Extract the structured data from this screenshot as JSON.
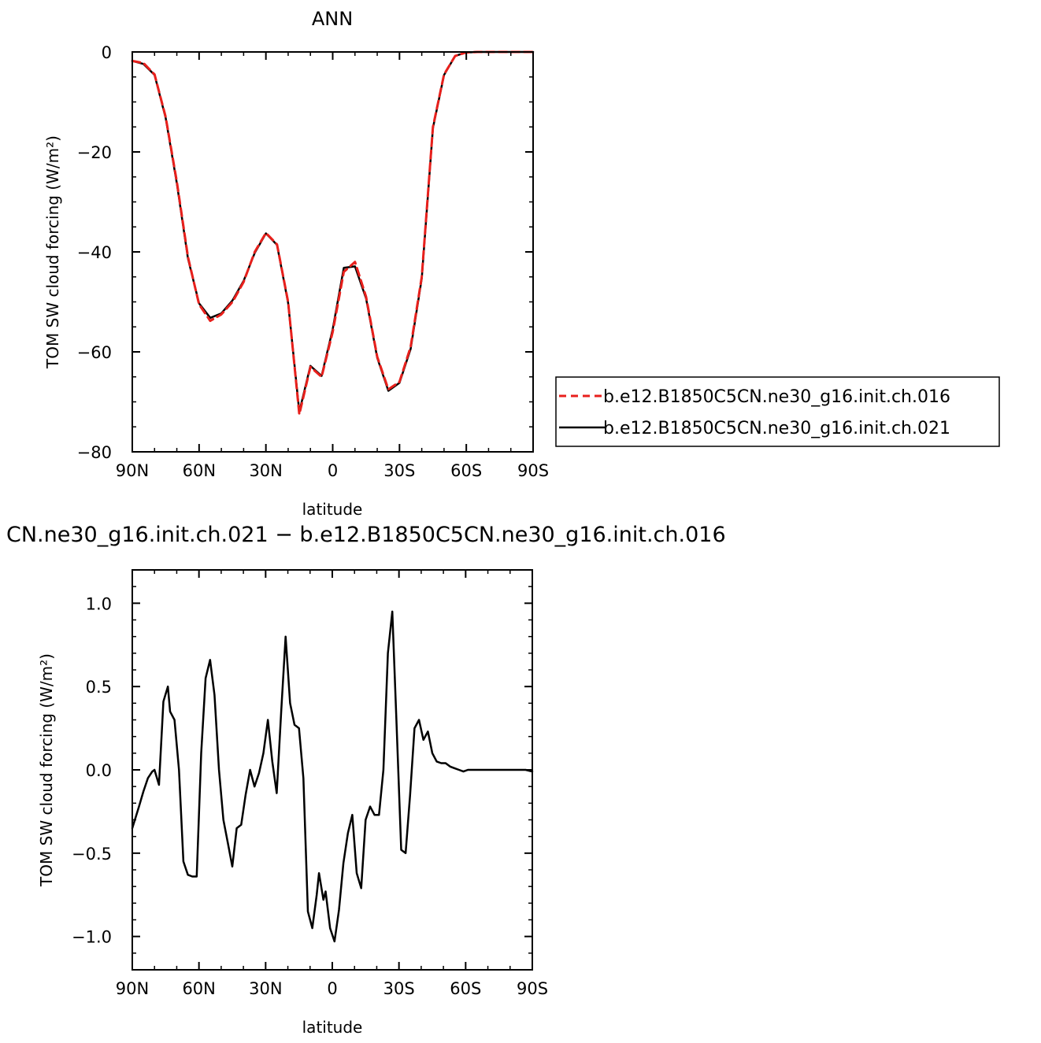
{
  "chart_data": [
    {
      "type": "line",
      "title": "ANN",
      "xlabel": "latitude",
      "ylabel": "TOM SW cloud forcing (W/m²)",
      "xlim": [
        90,
        -90
      ],
      "ylim": [
        -80,
        0
      ],
      "x_ticks": [
        {
          "value": 90,
          "label": "90N"
        },
        {
          "value": 60,
          "label": "60N"
        },
        {
          "value": 30,
          "label": "30N"
        },
        {
          "value": 0,
          "label": "0"
        },
        {
          "value": -30,
          "label": "30S"
        },
        {
          "value": -60,
          "label": "60S"
        },
        {
          "value": -90,
          "label": "90S"
        }
      ],
      "y_ticks": [
        {
          "value": 0,
          "label": "0"
        },
        {
          "value": -20,
          "label": "−20"
        },
        {
          "value": -40,
          "label": "−40"
        },
        {
          "value": -60,
          "label": "−60"
        },
        {
          "value": -80,
          "label": "−80"
        }
      ],
      "x": [
        90,
        85,
        80,
        75,
        70,
        65,
        60,
        55,
        50,
        45,
        40,
        35,
        30,
        25,
        20,
        15,
        10,
        5,
        0,
        -5,
        -10,
        -15,
        -20,
        -25,
        -30,
        -35,
        -40,
        -45,
        -50,
        -55,
        -60,
        -65,
        -70,
        -75,
        -80,
        -85,
        -90
      ],
      "series": [
        {
          "name": "b.e12.B1850C5CN.ne30_g16.init.ch.016",
          "color": "#e8201c",
          "dash": "dashed",
          "values": [
            -1.8,
            -2.2,
            -4.5,
            -13,
            -26,
            -41,
            -50.5,
            -53.8,
            -52.5,
            -50,
            -46,
            -40,
            -36.2,
            -38.5,
            -50,
            -72.5,
            -63,
            -65,
            -56,
            -44,
            -42,
            -49,
            -61,
            -67.5,
            -66,
            -59,
            -45,
            -15,
            -4.5,
            -0.8,
            -0.1,
            0,
            0,
            0,
            0,
            0,
            0
          ]
        },
        {
          "name": "b.e12.B1850C5CN.ne30_g16.init.ch.021",
          "color": "#000000",
          "dash": "solid",
          "values": [
            -1.8,
            -2.4,
            -4.6,
            -13.2,
            -26.3,
            -41.3,
            -50.3,
            -53.2,
            -52.3,
            -49.7,
            -45.8,
            -40.2,
            -36.3,
            -38.6,
            -50.2,
            -72.0,
            -62.8,
            -64.8,
            -55.5,
            -43.2,
            -42.9,
            -49.3,
            -61.2,
            -67.8,
            -66.2,
            -59.4,
            -45.3,
            -15.2,
            -4.6,
            -0.8,
            -0.1,
            0,
            0,
            0,
            0,
            0,
            0
          ]
        }
      ]
    },
    {
      "type": "line",
      "title": "CN.ne30_g16.init.ch.021 − b.e12.B1850C5CN.ne30_g16.init.ch.016",
      "xlabel": "latitude",
      "ylabel": "TOM SW cloud forcing (W/m²)",
      "xlim": [
        90,
        -90
      ],
      "ylim": [
        -1.2,
        1.2
      ],
      "x_ticks": [
        {
          "value": 90,
          "label": "90N"
        },
        {
          "value": 60,
          "label": "60N"
        },
        {
          "value": 30,
          "label": "30N"
        },
        {
          "value": 0,
          "label": "0"
        },
        {
          "value": -30,
          "label": "30S"
        },
        {
          "value": -60,
          "label": "60S"
        },
        {
          "value": -90,
          "label": "90S"
        }
      ],
      "y_ticks": [
        {
          "value": 1.0,
          "label": "1.0"
        },
        {
          "value": 0.5,
          "label": "0.5"
        },
        {
          "value": 0.0,
          "label": "0.0"
        },
        {
          "value": -0.5,
          "label": "−0.5"
        },
        {
          "value": -1.0,
          "label": "−1.0"
        }
      ],
      "x": [
        90,
        87,
        85,
        83,
        81,
        80,
        78,
        76,
        74,
        73,
        71,
        69,
        67,
        65,
        63,
        61,
        59,
        57,
        55,
        53,
        51,
        49,
        47,
        45,
        43,
        41,
        39,
        37,
        35,
        33,
        31,
        29,
        27,
        25,
        23,
        21,
        19,
        17,
        15,
        13,
        11,
        9,
        7,
        6,
        4,
        3,
        1,
        -1,
        -3,
        -5,
        -7,
        -9,
        -11,
        -13,
        -15,
        -17,
        -19,
        -21,
        -23,
        -25,
        -27,
        -29,
        -31,
        -33,
        -35,
        -37,
        -39,
        -41,
        -43,
        -45,
        -47,
        -49,
        -51,
        -53,
        -55,
        -57,
        -59,
        -61,
        -63,
        -65,
        -67,
        -69,
        -71,
        -73,
        -75,
        -77,
        -79,
        -81,
        -83,
        -85,
        -87,
        -90
      ],
      "series": [
        {
          "name": "",
          "color": "#000000",
          "dash": "solid",
          "values": [
            -0.35,
            -0.22,
            -0.13,
            -0.05,
            -0.01,
            0.0,
            -0.09,
            0.41,
            0.5,
            0.35,
            0.3,
            0.0,
            -0.55,
            -0.63,
            -0.64,
            -0.64,
            0.1,
            0.55,
            0.66,
            0.45,
            0.0,
            -0.3,
            -0.44,
            -0.58,
            -0.35,
            -0.33,
            -0.15,
            0.0,
            -0.1,
            -0.02,
            0.1,
            0.3,
            0.05,
            -0.14,
            0.35,
            0.8,
            0.4,
            0.27,
            0.25,
            -0.05,
            -0.85,
            -0.95,
            -0.75,
            -0.62,
            -0.78,
            -0.73,
            -0.95,
            -1.03,
            -0.84,
            -0.56,
            -0.38,
            -0.27,
            -0.62,
            -0.71,
            -0.3,
            -0.22,
            -0.27,
            -0.27,
            0.0,
            0.7,
            0.95,
            0.25,
            -0.48,
            -0.5,
            -0.15,
            0.25,
            0.3,
            0.18,
            0.23,
            0.1,
            0.05,
            0.04,
            0.04,
            0.02,
            0.01,
            0.0,
            -0.01,
            0.0,
            0.0,
            0.0,
            0.0,
            0.0,
            0.0,
            0.0,
            0.0,
            0.0,
            0.0,
            0.0,
            0.0,
            0.0,
            0.0,
            -0.01
          ]
        }
      ]
    }
  ]
}
